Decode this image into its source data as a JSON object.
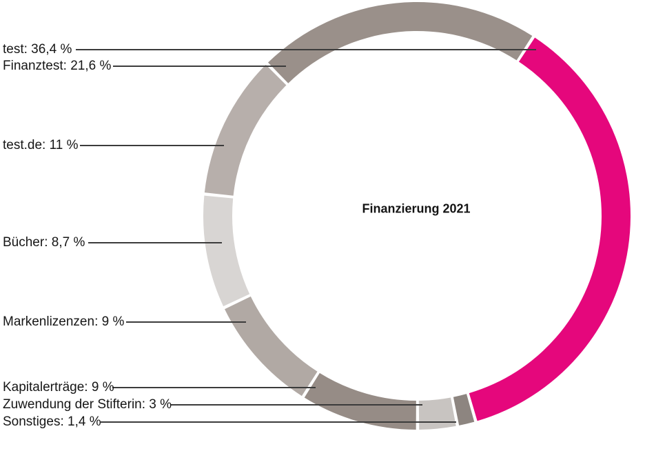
{
  "page": {
    "background": "#ffffff"
  },
  "chart_data": {
    "type": "pie",
    "subtype": "donut",
    "title": "Finanzierung 2021",
    "unit": "%",
    "legend_position": "left-callouts",
    "start_angle_deg_from_north": 164,
    "winding": "counterclockwise",
    "gap_color": "#ffffff",
    "leader_line_color": "#3b3b3b",
    "accent_color": "#e5077c",
    "segments": [
      {
        "label": "test",
        "value": 36.4,
        "display": "test: 36,4 %",
        "color": "#e5077c"
      },
      {
        "label": "Finanztest",
        "value": 21.6,
        "display": "Finanztest: 21,6 %",
        "color": "#9a908a"
      },
      {
        "label": "test.de",
        "value": 11,
        "display": "test.de: 11 %",
        "color": "#b7afab"
      },
      {
        "label": "Bücher",
        "value": 8.7,
        "display": "Bücher: 8,7 %",
        "color": "#d8d5d3"
      },
      {
        "label": "Markenlizenzen",
        "value": 9,
        "display": "Markenlizenzen: 9 %",
        "color": "#b1a9a4"
      },
      {
        "label": "Kapitalerträge",
        "value": 9,
        "display": "Kapitalerträge: 9 %",
        "color": "#968c86"
      },
      {
        "label": "Zuwendung der Stifterin",
        "value": 3,
        "display": "Zuwendung der Stifterin: 3 %",
        "color": "#c8c4c1"
      },
      {
        "label": "Sonstiges",
        "value": 1.4,
        "display": "Sonstiges: 1,4 %",
        "color": "#8d8580"
      }
    ]
  }
}
